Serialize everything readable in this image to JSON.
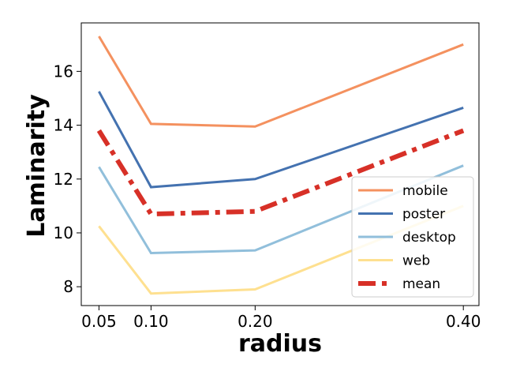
{
  "chart_data": {
    "type": "line",
    "xlabel": "radius",
    "ylabel": "Laminarity",
    "x": [
      0.05,
      0.1,
      0.2,
      0.4
    ],
    "x_tick_labels": [
      "0.05",
      "0.10",
      "0.20",
      "0.40"
    ],
    "y_ticks": [
      8,
      10,
      12,
      14,
      16
    ],
    "xlim": [
      0.033,
      0.415
    ],
    "ylim": [
      7.3,
      17.8
    ],
    "grid": false,
    "legend_position": "lower right",
    "series": [
      {
        "name": "mobile",
        "color": "#f4915f",
        "style": "solid",
        "values": [
          17.3,
          14.05,
          13.95,
          17.0
        ]
      },
      {
        "name": "poster",
        "color": "#4472b0",
        "style": "solid",
        "values": [
          15.25,
          11.7,
          12.0,
          14.65
        ]
      },
      {
        "name": "desktop",
        "color": "#91bfdb",
        "style": "solid",
        "values": [
          12.45,
          9.25,
          9.35,
          12.5
        ]
      },
      {
        "name": "web",
        "color": "#fee090",
        "style": "solid",
        "values": [
          10.25,
          7.75,
          7.9,
          11.0
        ]
      },
      {
        "name": "mean",
        "color": "#d73027",
        "style": "dashdot",
        "values": [
          13.8,
          10.7,
          10.8,
          13.8
        ]
      }
    ]
  }
}
